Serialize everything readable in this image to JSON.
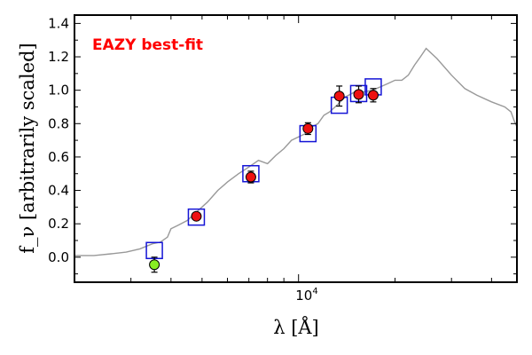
{
  "chart_data": {
    "type": "scatter",
    "title": "",
    "xlabel": "λ [Å]",
    "ylabel": "f_ν [arbitrarily scaled]",
    "xscale": "log",
    "xlim": [
      2000,
      48000
    ],
    "ylim": [
      -0.15,
      1.45
    ],
    "yticks": [
      0.0,
      0.2,
      0.4,
      0.6,
      0.8,
      1.0,
      1.2,
      1.4
    ],
    "ytick_labels": [
      "0.0",
      "0.2",
      "0.4",
      "0.6",
      "0.8",
      "1.0",
      "1.2",
      "1.4"
    ],
    "xtick_label": {
      "value": 10000,
      "base": "10",
      "exp": "4"
    },
    "annotation": {
      "text": "EAZY best-fit",
      "color": "#ff0000",
      "position": "top-left"
    },
    "model_curve": {
      "name": "EAZY best-fit SED",
      "color": "#999999",
      "x": [
        2000,
        2300,
        2600,
        2900,
        3200,
        3500,
        3700,
        3900,
        4000,
        4200,
        4500,
        4800,
        5200,
        5600,
        6000,
        6500,
        7000,
        7500,
        8000,
        8500,
        9000,
        9500,
        10000,
        10500,
        11000,
        11500,
        12000,
        12500,
        13000,
        13500,
        14000,
        15000,
        16000,
        17000,
        18000,
        19000,
        20000,
        21000,
        22000,
        23000,
        24000,
        25000,
        27000,
        30000,
        33000,
        36000,
        40000,
        44000,
        46000,
        47000,
        48000
      ],
      "y": [
        0.01,
        0.01,
        0.02,
        0.03,
        0.05,
        0.08,
        0.09,
        0.12,
        0.17,
        0.19,
        0.22,
        0.27,
        0.33,
        0.4,
        0.45,
        0.5,
        0.54,
        0.58,
        0.56,
        0.61,
        0.65,
        0.7,
        0.72,
        0.74,
        0.78,
        0.8,
        0.85,
        0.87,
        0.9,
        0.93,
        0.96,
        0.99,
        0.99,
        1.0,
        1.02,
        1.04,
        1.06,
        1.06,
        1.09,
        1.15,
        1.2,
        1.25,
        1.19,
        1.09,
        1.01,
        0.97,
        0.93,
        0.9,
        0.87,
        0.82,
        0.78
      ]
    },
    "model_photometry": {
      "name": "model flux (squares)",
      "color": "#1414d6",
      "x": [
        3550,
        4800,
        7100,
        10700,
        13400,
        15400,
        17100
      ],
      "y": [
        0.04,
        0.24,
        0.5,
        0.74,
        0.91,
        0.98,
        1.02
      ]
    },
    "observed_photometry": {
      "name": "observed flux",
      "marker_color": "#ee1111",
      "nondetection_color": "#88ee22",
      "x": [
        3550,
        4800,
        7100,
        10700,
        13400,
        15400,
        17100
      ],
      "y": [
        -0.045,
        0.245,
        0.48,
        0.77,
        0.965,
        0.975,
        0.97
      ],
      "yerr": [
        0.045,
        0.02,
        0.035,
        0.035,
        0.06,
        0.05,
        0.04
      ],
      "detected": [
        false,
        true,
        true,
        true,
        true,
        true,
        true
      ]
    }
  }
}
